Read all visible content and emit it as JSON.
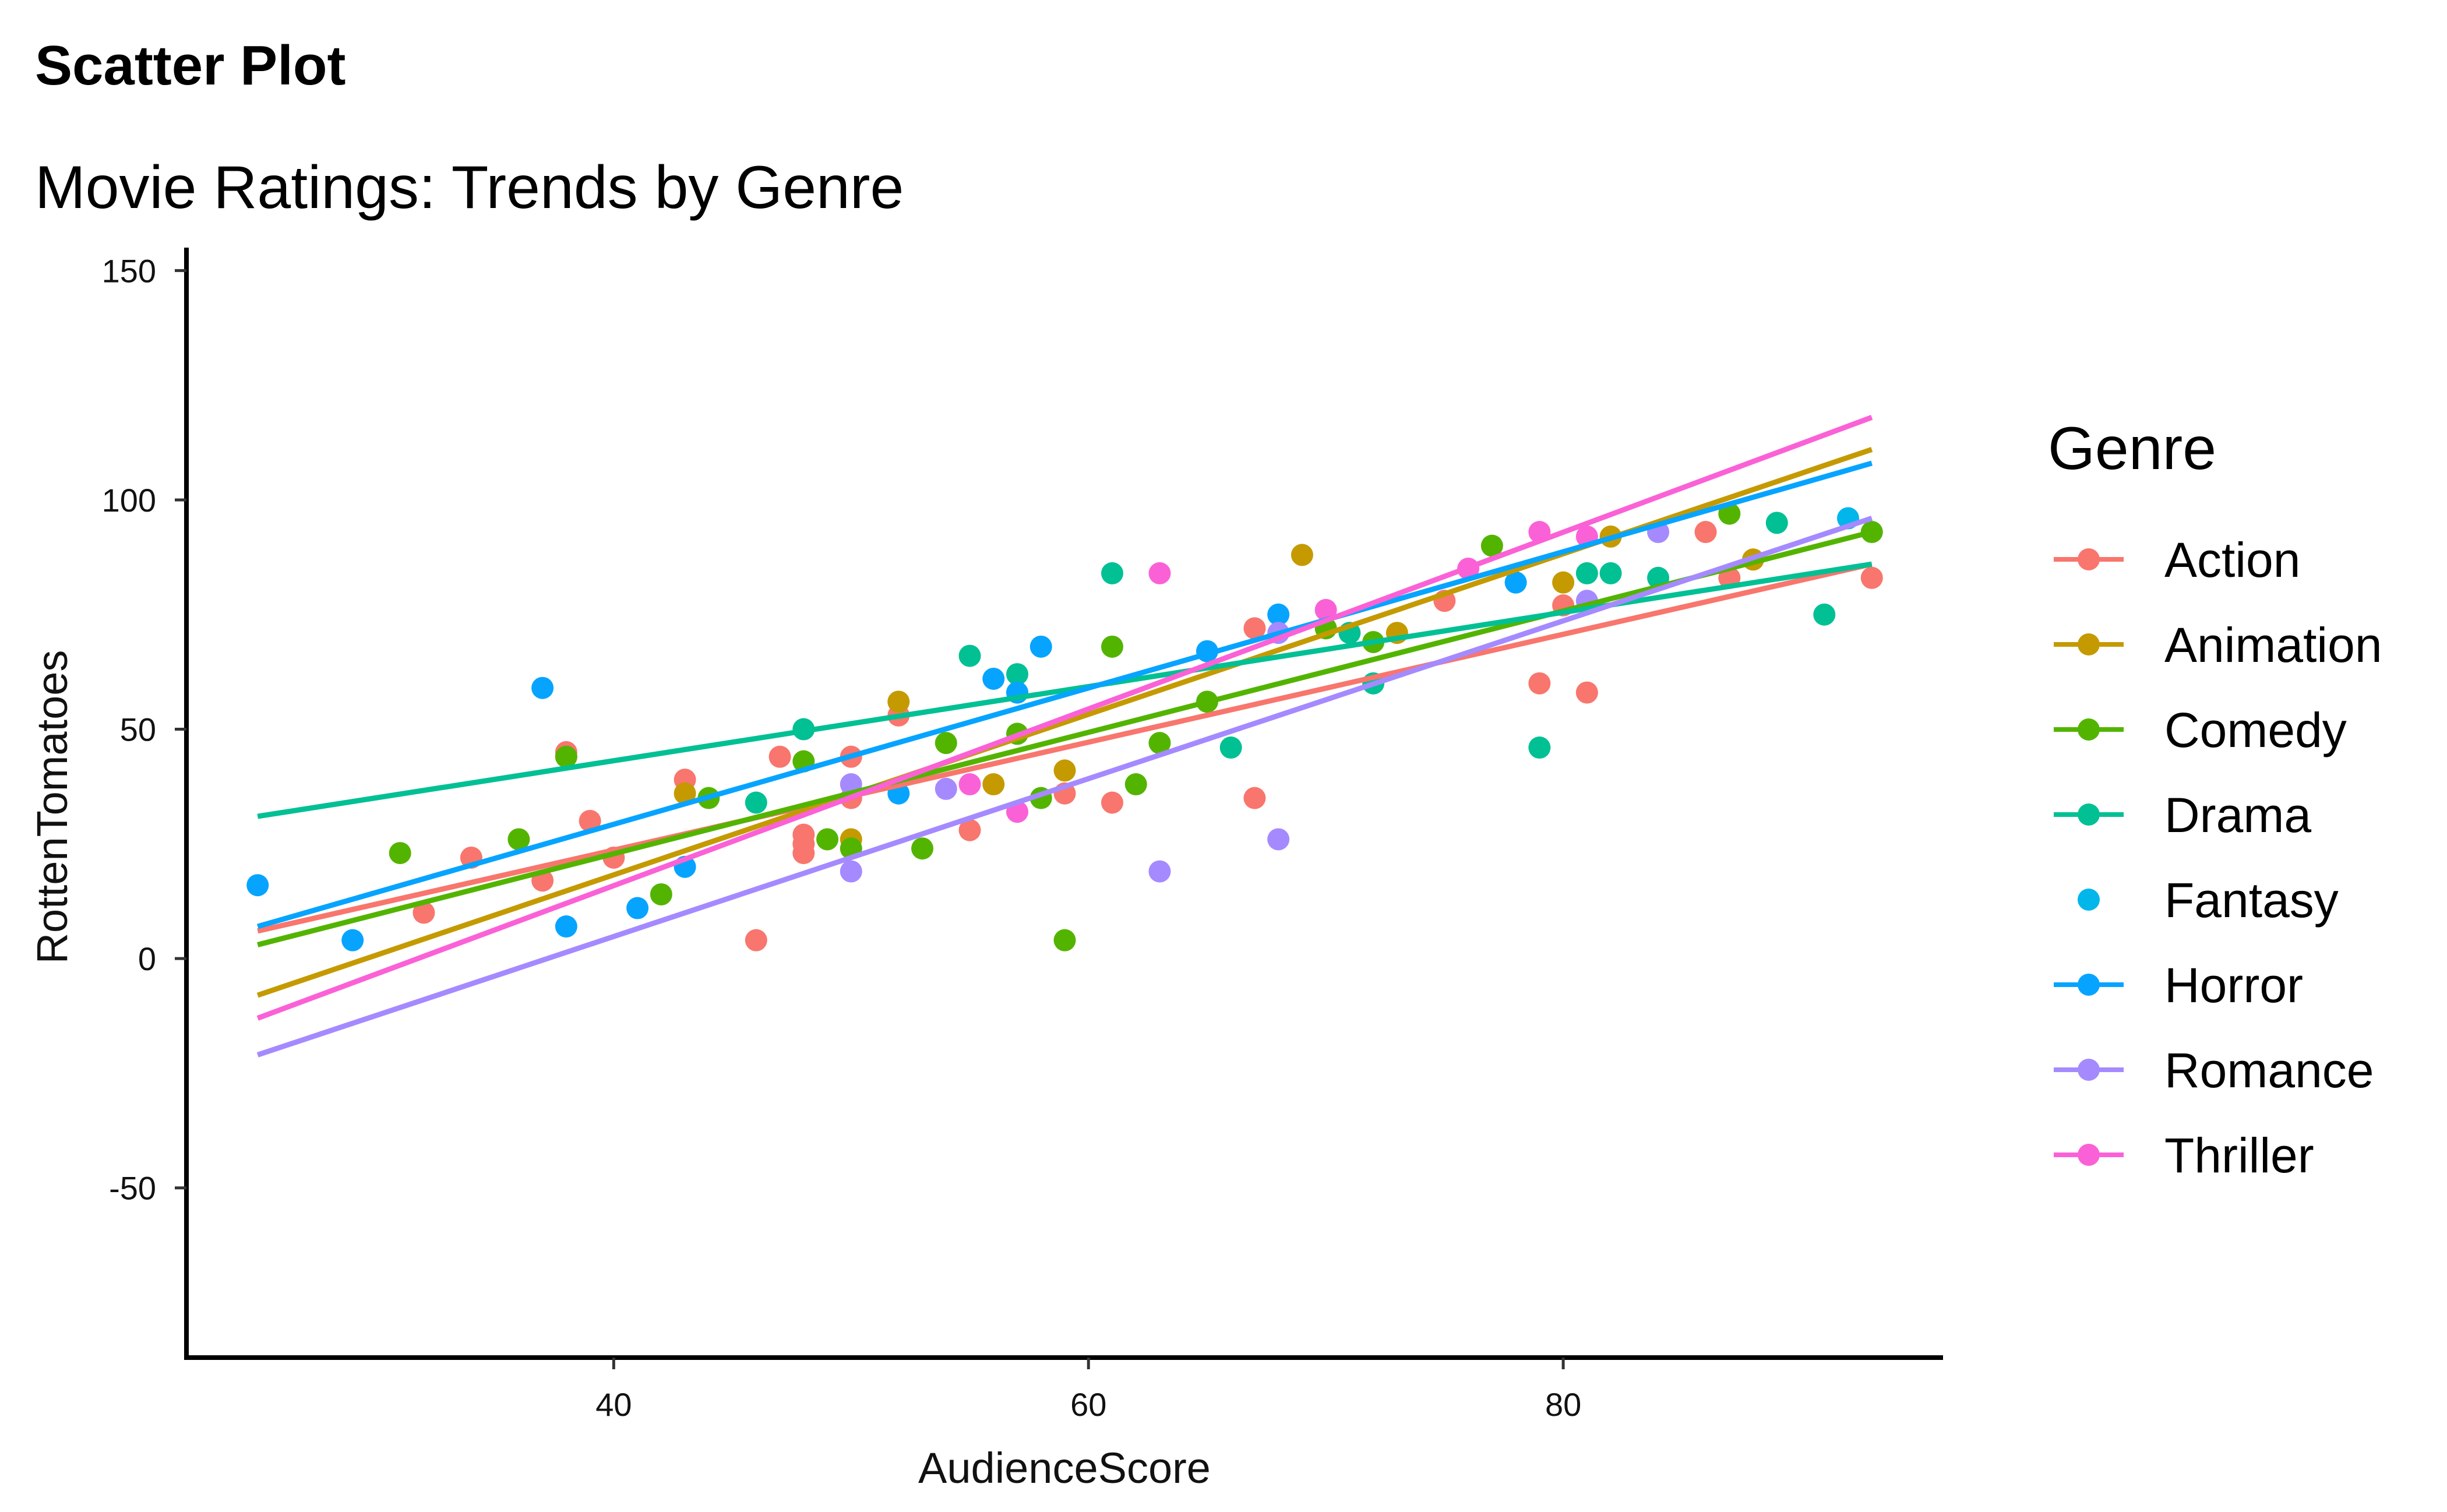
{
  "title": "Scatter Plot",
  "subtitle": "Movie Ratings: Trends by Genre",
  "chart_data": {
    "type": "scatter",
    "xlabel": "AudienceScore",
    "ylabel": "RottenTomatoes",
    "xlim": [
      22,
      96
    ],
    "ylim": [
      -87,
      155
    ],
    "x_ticks": [
      40,
      60,
      80
    ],
    "y_ticks": [
      150,
      100,
      50,
      0,
      -50
    ],
    "x_tick_labels": [
      "40",
      "60",
      "80"
    ],
    "y_tick_labels": [
      "150",
      "100",
      "50",
      "0",
      "-50"
    ],
    "grid": false,
    "legend": {
      "title": "Genre",
      "placement": "right",
      "entries": [
        "Action",
        "Animation",
        "Comedy",
        "Drama",
        "Fantasy",
        "Horror",
        "Romance",
        "Thriller"
      ]
    },
    "series": [
      {
        "name": "Action",
        "color": "#F8766D",
        "points": [
          [
            32,
            10
          ],
          [
            34,
            22
          ],
          [
            37,
            17
          ],
          [
            38,
            45
          ],
          [
            38,
            44
          ],
          [
            39,
            30
          ],
          [
            40,
            22
          ],
          [
            43,
            39
          ],
          [
            46,
            4
          ],
          [
            47,
            44
          ],
          [
            48,
            27
          ],
          [
            48,
            25
          ],
          [
            48,
            23
          ],
          [
            50,
            44
          ],
          [
            50,
            35
          ],
          [
            52,
            53
          ],
          [
            55,
            28
          ],
          [
            59,
            36
          ],
          [
            61,
            34
          ],
          [
            67,
            35
          ],
          [
            67,
            72
          ],
          [
            75,
            78
          ],
          [
            79,
            60
          ],
          [
            80,
            77
          ],
          [
            81,
            58
          ],
          [
            86,
            93
          ],
          [
            87,
            83
          ],
          [
            93,
            83
          ]
        ],
        "trend": [
          [
            25,
            6
          ],
          [
            93,
            86
          ]
        ]
      },
      {
        "name": "Animation",
        "color": "#C49A00",
        "points": [
          [
            43,
            36
          ],
          [
            50,
            26
          ],
          [
            52,
            56
          ],
          [
            56,
            38
          ],
          [
            59,
            41
          ],
          [
            69,
            88
          ],
          [
            73,
            71
          ],
          [
            80,
            82
          ],
          [
            82,
            92
          ],
          [
            88,
            87
          ]
        ],
        "trend": [
          [
            25,
            -8
          ],
          [
            93,
            111
          ]
        ]
      },
      {
        "name": "Comedy",
        "color": "#53B400",
        "points": [
          [
            31,
            23
          ],
          [
            36,
            26
          ],
          [
            38,
            44
          ],
          [
            42,
            14
          ],
          [
            44,
            35
          ],
          [
            48,
            43
          ],
          [
            49,
            26
          ],
          [
            50,
            24
          ],
          [
            53,
            24
          ],
          [
            54,
            47
          ],
          [
            57,
            49
          ],
          [
            58,
            35
          ],
          [
            59,
            4
          ],
          [
            61,
            68
          ],
          [
            62,
            38
          ],
          [
            63,
            47
          ],
          [
            65,
            56
          ],
          [
            70,
            72
          ],
          [
            72,
            69
          ],
          [
            77,
            90
          ],
          [
            87,
            97
          ],
          [
            93,
            93
          ]
        ],
        "trend": [
          [
            25,
            3
          ],
          [
            93,
            93
          ]
        ]
      },
      {
        "name": "Drama",
        "color": "#00C094",
        "points": [
          [
            46,
            34
          ],
          [
            48,
            50
          ],
          [
            55,
            66
          ],
          [
            57,
            62
          ],
          [
            57,
            58
          ],
          [
            61,
            84
          ],
          [
            66,
            46
          ],
          [
            71,
            71
          ],
          [
            72,
            60
          ],
          [
            79,
            46
          ],
          [
            81,
            84
          ],
          [
            82,
            84
          ],
          [
            84,
            83
          ],
          [
            89,
            95
          ],
          [
            91,
            75
          ]
        ],
        "trend": [
          [
            25,
            31
          ],
          [
            93,
            86
          ]
        ]
      },
      {
        "name": "Fantasy",
        "color": "#00B6EB",
        "points": [
          [
            92,
            96
          ]
        ],
        "trend": []
      },
      {
        "name": "Horror",
        "color": "#06A4FF",
        "points": [
          [
            25,
            16
          ],
          [
            29,
            4
          ],
          [
            37,
            59
          ],
          [
            38,
            7
          ],
          [
            41,
            11
          ],
          [
            43,
            20
          ],
          [
            52,
            36
          ],
          [
            56,
            61
          ],
          [
            57,
            58
          ],
          [
            58,
            68
          ],
          [
            65,
            67
          ],
          [
            68,
            75
          ],
          [
            78,
            82
          ]
        ],
        "trend": [
          [
            25,
            7
          ],
          [
            93,
            108
          ]
        ]
      },
      {
        "name": "Romance",
        "color": "#A58AFF",
        "points": [
          [
            50,
            38
          ],
          [
            50,
            19
          ],
          [
            54,
            37
          ],
          [
            63,
            19
          ],
          [
            68,
            71
          ],
          [
            68,
            26
          ],
          [
            81,
            78
          ],
          [
            84,
            93
          ]
        ],
        "trend": [
          [
            25,
            -21
          ],
          [
            93,
            96
          ]
        ]
      },
      {
        "name": "Thriller",
        "color": "#FB61D7",
        "points": [
          [
            55,
            38
          ],
          [
            57,
            32
          ],
          [
            63,
            84
          ],
          [
            70,
            76
          ],
          [
            76,
            85
          ],
          [
            79,
            93
          ],
          [
            81,
            92
          ]
        ],
        "trend": [
          [
            25,
            -13
          ],
          [
            93,
            118
          ]
        ]
      }
    ]
  }
}
